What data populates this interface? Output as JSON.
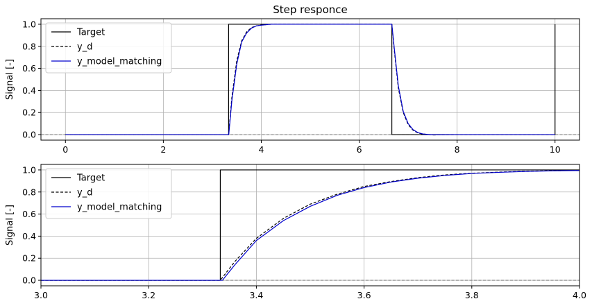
{
  "chart_data": [
    {
      "type": "line",
      "title": "Step responce",
      "xlabel": "",
      "ylabel": "Signal [-]",
      "xlim": [
        -0.5,
        10.5
      ],
      "ylim": [
        -0.05,
        1.05
      ],
      "xticks": [
        0,
        2,
        4,
        6,
        8,
        10
      ],
      "xtick_labels": [
        "0",
        "2",
        "4",
        "6",
        "8",
        "10"
      ],
      "yticks": [
        0.0,
        0.2,
        0.4,
        0.6,
        0.8,
        1.0
      ],
      "ytick_labels": [
        "0.0",
        "0.2",
        "0.4",
        "0.6",
        "0.8",
        "1.0"
      ],
      "grid": true,
      "legend_position": "top-left",
      "reference_line": {
        "y": 0,
        "style": "dashed",
        "color": "#808080"
      },
      "series": [
        {
          "name": "Target",
          "color": "#000000",
          "dash": "solid",
          "x": [
            0,
            3.333,
            3.333,
            6.667,
            6.667,
            10,
            10
          ],
          "y": [
            0,
            0,
            1,
            1,
            0,
            0,
            1
          ]
        },
        {
          "name": "y_d",
          "color": "#000000",
          "dash": "dashed",
          "x": [
            0,
            3.333,
            3.4,
            3.5,
            3.6,
            3.7,
            3.8,
            3.9,
            4.0,
            4.2,
            4.5,
            5.0,
            6.0,
            6.667,
            6.72,
            6.8,
            6.9,
            7.0,
            7.1,
            7.2,
            7.3,
            7.5,
            8.0,
            10.0
          ],
          "y": [
            0,
            0,
            0.34,
            0.67,
            0.85,
            0.93,
            0.97,
            0.985,
            0.993,
            1.0,
            1.0,
            1.0,
            1.0,
            1.0,
            0.75,
            0.42,
            0.2,
            0.09,
            0.04,
            0.015,
            0.005,
            -0.003,
            0,
            0
          ]
        },
        {
          "name": "y_model_matching",
          "color": "#0000cc",
          "dash": "solid",
          "x": [
            0,
            3.336,
            3.4,
            3.5,
            3.6,
            3.7,
            3.8,
            3.9,
            4.0,
            4.2,
            4.5,
            5.0,
            6.0,
            6.667,
            6.72,
            6.8,
            6.9,
            7.0,
            7.1,
            7.2,
            7.3,
            7.5,
            8.0,
            10.0
          ],
          "y": [
            0,
            0,
            0.31,
            0.64,
            0.84,
            0.92,
            0.965,
            0.985,
            0.992,
            1.0,
            1.0,
            1.0,
            1.0,
            1.0,
            0.77,
            0.44,
            0.21,
            0.1,
            0.045,
            0.018,
            0.006,
            -0.002,
            0,
            0
          ]
        }
      ]
    },
    {
      "type": "line",
      "title": "",
      "xlabel": "",
      "ylabel": "Signal [-]",
      "xlim": [
        3.0,
        4.0
      ],
      "ylim": [
        -0.05,
        1.05
      ],
      "xticks": [
        3.0,
        3.2,
        3.4,
        3.6,
        3.8,
        4.0
      ],
      "xtick_labels": [
        "3.0",
        "3.2",
        "3.4",
        "3.6",
        "3.8",
        "4.0"
      ],
      "yticks": [
        0.0,
        0.2,
        0.4,
        0.6,
        0.8,
        1.0
      ],
      "ytick_labels": [
        "0.0",
        "0.2",
        "0.4",
        "0.6",
        "0.8",
        "1.0"
      ],
      "grid": true,
      "legend_position": "top-left",
      "reference_line": {
        "y": 0,
        "style": "dashed",
        "color": "#808080"
      },
      "series": [
        {
          "name": "Target",
          "color": "#000000",
          "dash": "solid",
          "x": [
            3.0,
            3.333,
            3.333,
            4.0
          ],
          "y": [
            0,
            0,
            1,
            1
          ]
        },
        {
          "name": "y_d",
          "color": "#000000",
          "dash": "dashed",
          "x": [
            3.0,
            3.333,
            3.36,
            3.4,
            3.45,
            3.5,
            3.55,
            3.6,
            3.65,
            3.7,
            3.75,
            3.8,
            3.85,
            3.9,
            3.95,
            4.0
          ],
          "y": [
            0,
            0,
            0.17,
            0.38,
            0.56,
            0.69,
            0.78,
            0.85,
            0.895,
            0.93,
            0.955,
            0.97,
            0.98,
            0.988,
            0.993,
            0.995
          ]
        },
        {
          "name": "y_model_matching",
          "color": "#0000cc",
          "dash": "solid",
          "x": [
            3.0,
            3.337,
            3.36,
            3.4,
            3.45,
            3.5,
            3.55,
            3.6,
            3.65,
            3.7,
            3.75,
            3.8,
            3.85,
            3.9,
            3.95,
            4.0
          ],
          "y": [
            0,
            0,
            0.14,
            0.36,
            0.54,
            0.67,
            0.77,
            0.84,
            0.89,
            0.925,
            0.95,
            0.968,
            0.978,
            0.986,
            0.992,
            0.995
          ]
        }
      ]
    }
  ]
}
